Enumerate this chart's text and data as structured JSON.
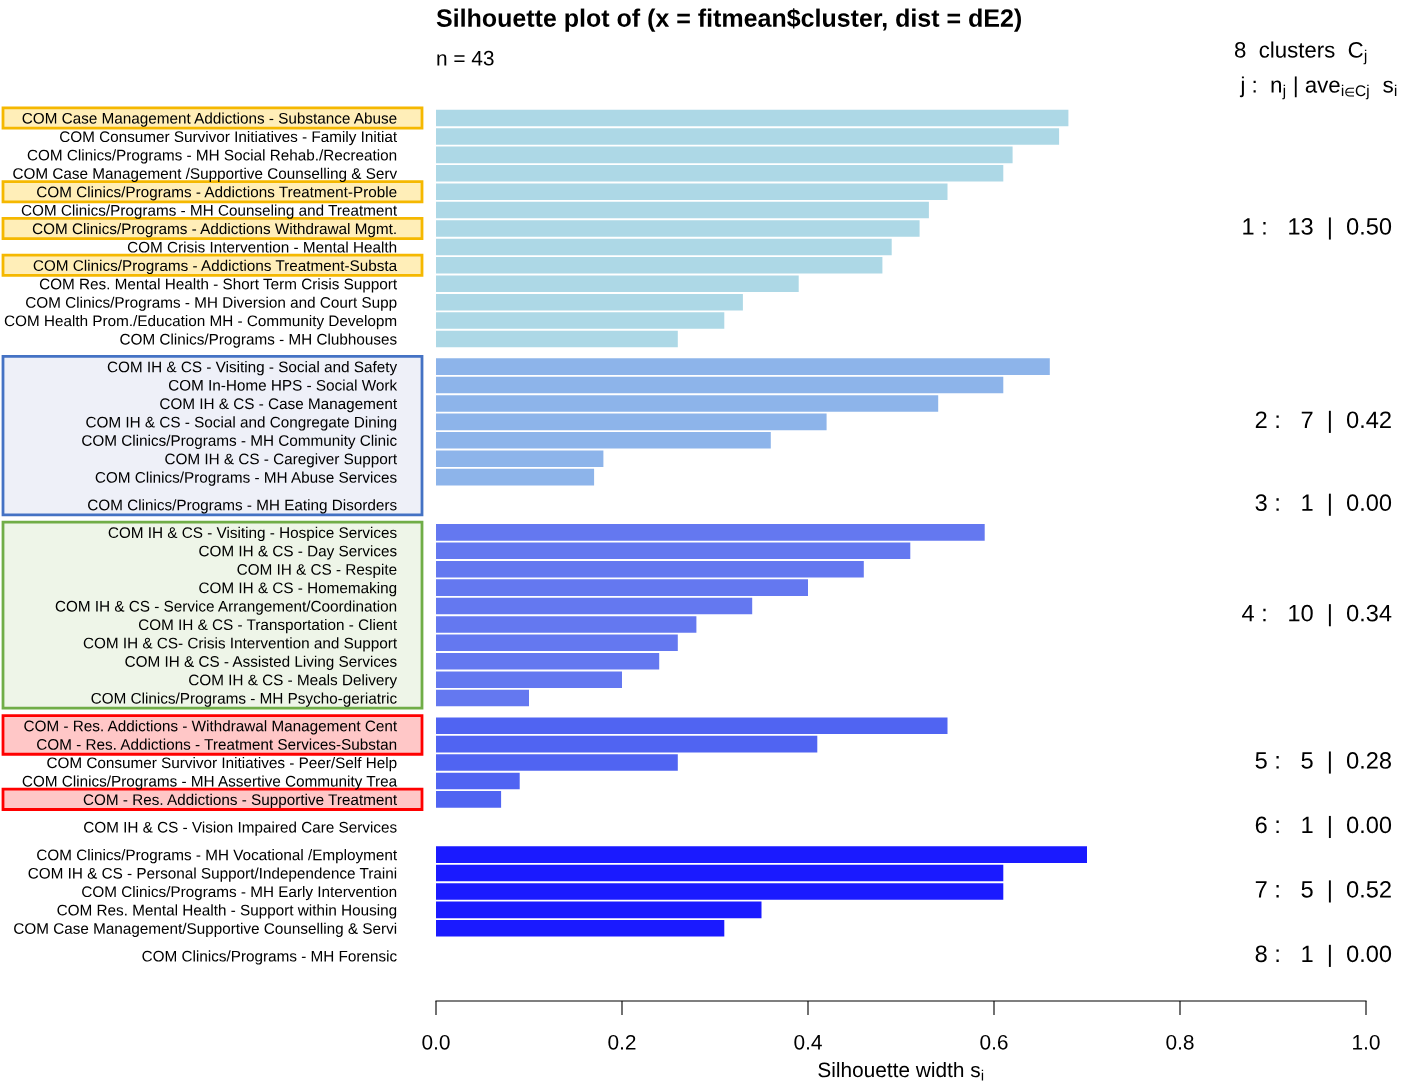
{
  "chart_data": {
    "type": "bar",
    "orientation": "horizontal",
    "title": "Silhouette plot of (x = fitmean$cluster, dist = dE2)",
    "xlabel": "Silhouette width s$_{i}$",
    "categories": [
      "COM Case Management Addictions - Substance Abuse",
      "COM Consumer Survivor Initiatives - Family Initiat",
      "COM Clinics/Programs - MH Social Rehab./Recreation",
      "COM Case Management /Supportive Counselling & Serv",
      "COM Clinics/Programs - Addictions Treatment-Proble",
      "COM Clinics/Programs - MH Counseling and Treatment",
      "COM Clinics/Programs - Addictions Withdrawal Mgmt.",
      "COM Crisis Intervention - Mental Health",
      "COM Clinics/Programs - Addictions Treatment-Substa",
      "COM Res. Mental Health - Short Term Crisis Support",
      "COM Clinics/Programs - MH Diversion and Court Supp",
      "COM Health Prom./Education MH - Community Developm",
      "COM Clinics/Programs - MH Clubhouses",
      "COM IH & CS - Visiting - Social and Safety",
      "COM In-Home HPS - Social Work",
      "COM IH & CS - Case Management",
      "COM IH & CS - Social and Congregate Dining",
      "COM Clinics/Programs - MH Community Clinic",
      "COM IH & CS - Caregiver Support",
      "COM Clinics/Programs - MH Abuse Services",
      "COM Clinics/Programs - MH Eating Disorders",
      "COM IH & CS - Visiting - Hospice Services",
      "COM IH & CS - Day Services",
      "COM IH & CS - Respite",
      "COM IH & CS - Homemaking",
      "COM IH & CS - Service Arrangement/Coordination",
      "COM IH & CS - Transportation - Client",
      "COM IH & CS- Crisis Intervention and Support",
      "COM IH & CS - Assisted Living Services",
      "COM IH & CS - Meals Delivery",
      "COM Clinics/Programs - MH Psycho-geriatric",
      "COM - Res. Addictions - Withdrawal Management Cent",
      "COM - Res. Addictions - Treatment Services-Substan",
      "COM Consumer Survivor Initiatives - Peer/Self Help",
      "COM Clinics/Programs - MH Assertive Community Trea",
      "COM - Res. Addictions - Supportive Treatment",
      "COM IH & CS - Vision Impaired Care Services",
      "COM Clinics/Programs - MH Vocational /Employment",
      "COM IH & CS - Personal Support/Independence Traini",
      "COM Clinics/Programs - MH Early Intervention",
      "COM Res. Mental Health - Support within Housing",
      "COM Case Management/Supportive Counselling & Servi",
      "COM Clinics/Programs - MH Forensic"
    ],
    "series": [
      {
        "color": "#add8e6",
        "values": [
          0.68,
          0.67,
          0.62,
          0.61,
          0.55,
          0.53,
          0.52,
          0.49,
          0.48,
          0.39,
          0.33,
          0.31,
          0.26,
          null,
          null,
          null,
          null,
          null,
          null,
          null,
          null,
          null,
          null,
          null,
          null,
          null,
          null,
          null,
          null,
          null,
          null,
          null,
          null,
          null,
          null,
          null,
          null,
          null,
          null,
          null,
          null,
          null,
          null
        ]
      },
      {
        "color": "#8db4ea",
        "values": [
          null,
          null,
          null,
          null,
          null,
          null,
          null,
          null,
          null,
          null,
          null,
          null,
          null,
          0.66,
          0.61,
          0.54,
          0.42,
          0.36,
          0.18,
          0.17,
          null,
          null,
          null,
          null,
          null,
          null,
          null,
          null,
          null,
          null,
          null,
          null,
          null,
          null,
          null,
          null,
          null,
          null,
          null,
          null,
          null,
          null,
          null
        ]
      },
      {
        "color": "#7b97ec",
        "values": [
          null,
          null,
          null,
          null,
          null,
          null,
          null,
          null,
          null,
          null,
          null,
          null,
          null,
          null,
          null,
          null,
          null,
          null,
          null,
          null,
          0.0,
          null,
          null,
          null,
          null,
          null,
          null,
          null,
          null,
          null,
          null,
          null,
          null,
          null,
          null,
          null,
          null,
          null,
          null,
          null,
          null,
          null,
          null
        ]
      },
      {
        "color": "#6478f0",
        "values": [
          null,
          null,
          null,
          null,
          null,
          null,
          null,
          null,
          null,
          null,
          null,
          null,
          null,
          null,
          null,
          null,
          null,
          null,
          null,
          null,
          null,
          0.59,
          0.51,
          0.46,
          0.4,
          0.34,
          0.28,
          0.26,
          0.24,
          0.2,
          0.1,
          null,
          null,
          null,
          null,
          null,
          null,
          null,
          null,
          null,
          null,
          null,
          null
        ]
      },
      {
        "color": "#5064f2",
        "values": [
          null,
          null,
          null,
          null,
          null,
          null,
          null,
          null,
          null,
          null,
          null,
          null,
          null,
          null,
          null,
          null,
          null,
          null,
          null,
          null,
          null,
          null,
          null,
          null,
          null,
          null,
          null,
          null,
          null,
          null,
          null,
          0.55,
          0.41,
          0.26,
          0.09,
          0.07,
          null,
          null,
          null,
          null,
          null,
          null,
          null
        ]
      },
      {
        "color": "#3a48f6",
        "values": [
          null,
          null,
          null,
          null,
          null,
          null,
          null,
          null,
          null,
          null,
          null,
          null,
          null,
          null,
          null,
          null,
          null,
          null,
          null,
          null,
          null,
          null,
          null,
          null,
          null,
          null,
          null,
          null,
          null,
          null,
          null,
          null,
          null,
          null,
          null,
          null,
          0.0,
          null,
          null,
          null,
          null,
          null,
          null
        ]
      },
      {
        "color": "#1a1aff",
        "values": [
          null,
          null,
          null,
          null,
          null,
          null,
          null,
          null,
          null,
          null,
          null,
          null,
          null,
          null,
          null,
          null,
          null,
          null,
          null,
          null,
          null,
          null,
          null,
          null,
          null,
          null,
          null,
          null,
          null,
          null,
          null,
          null,
          null,
          null,
          null,
          null,
          null,
          0.7,
          0.61,
          0.61,
          0.35,
          0.31,
          null
        ]
      },
      {
        "color": "#0000ff",
        "values": [
          null,
          null,
          null,
          null,
          null,
          null,
          null,
          null,
          null,
          null,
          null,
          null,
          null,
          null,
          null,
          null,
          null,
          null,
          null,
          null,
          null,
          null,
          null,
          null,
          null,
          null,
          null,
          null,
          null,
          null,
          null,
          null,
          null,
          null,
          null,
          null,
          null,
          null,
          null,
          null,
          null,
          null,
          0.0
        ]
      }
    ],
    "xlim": [
      0,
      1
    ],
    "xticks": [
      {
        "value": 0,
        "label": "0.0"
      },
      0.2,
      0.4,
      0.6,
      0.8,
      {
        "value": 1,
        "label": "1.0"
      }
    ],
    "grid": false,
    "legend": false,
    "annotations": [
      "n = 43",
      "8  clusters  C$_{j}$",
      "j :  n$_{j}$ | ave$_{i∈Cj}$  s$_{i}$",
      "1 :   13  |  0.50",
      "2 :   7  |  0.42",
      "3 :   1  |  0.00",
      "4 :   10  |  0.34",
      "5 :   5  |  0.28",
      "6 :   1  |  0.00",
      "7 :   5  |  0.52",
      "8 :   1  |  0.00"
    ]
  }
}
